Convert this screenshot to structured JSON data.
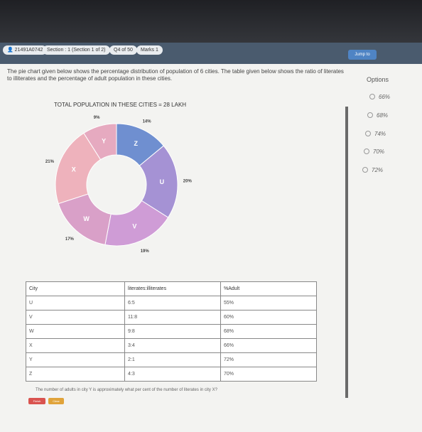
{
  "header": {
    "candidate_id": "21491A0742",
    "section": "Section : 1 (Section 1 of 2)",
    "question_no": "Q4 of 50",
    "marks": "Marks 1",
    "jump_label": "Jump to"
  },
  "question": {
    "text": "The pie chart given below shows the percentage distribution of population of 6 cities. The table given below shows the ratio of literates to illiterates and the percentage of adult population in these cities.",
    "prompt": "The number of adults in city Y is approximately what per cent of the number of literates in city X?"
  },
  "options": {
    "heading": "Options",
    "items": [
      "66%",
      "68%",
      "74%",
      "70%",
      "72%"
    ]
  },
  "chart_data": {
    "type": "pie",
    "title": "TOTAL POPULATION IN THESE CITIES = 28 LAKH",
    "categories": [
      "Z",
      "U",
      "V",
      "W",
      "X",
      "Y"
    ],
    "values": [
      14,
      20,
      19,
      17,
      21,
      9
    ],
    "labels": [
      "14%",
      "20%",
      "19%",
      "17%",
      "21%",
      "9%"
    ],
    "colors": [
      "#6f8fd0",
      "#a592d4",
      "#cf9cd6",
      "#d9a0c8",
      "#eeb2bc",
      "#e6aac0"
    ]
  },
  "table": {
    "headers": [
      "City",
      "literates:illiterates",
      "%Adult"
    ],
    "rows": [
      [
        "U",
        "6:5",
        "55%"
      ],
      [
        "V",
        "11:8",
        "60%"
      ],
      [
        "W",
        "9:8",
        "68%"
      ],
      [
        "X",
        "3:4",
        "66%"
      ],
      [
        "Y",
        "2:1",
        "72%"
      ],
      [
        "Z",
        "4:3",
        "70%"
      ]
    ]
  },
  "footer": {
    "finish_label": "Finish",
    "clear_label": "Clear"
  }
}
